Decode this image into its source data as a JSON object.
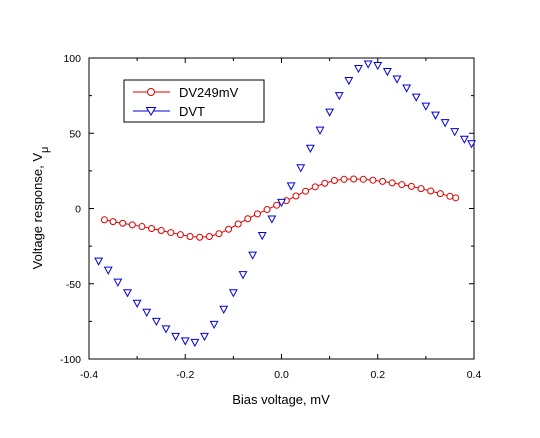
{
  "chart_data": {
    "type": "scatter",
    "xlabel": "Bias voltage, mV",
    "ylabel": "Voltage response, V",
    "ylabel_sub": "μ",
    "xlim": [
      -0.4,
      0.4
    ],
    "ylim": [
      -100,
      100
    ],
    "xticks": [
      "-0.4",
      "-0.2",
      "0.0",
      "0.2",
      "0.4"
    ],
    "yticks": [
      "-100",
      "-50",
      "0",
      "50",
      "100"
    ],
    "grid": false,
    "legend_position": "top-left",
    "series": [
      {
        "name": "DV249mV",
        "marker": "circle",
        "color": "#dd0000",
        "x": [
          -0.368,
          -0.35,
          -0.33,
          -0.31,
          -0.29,
          -0.27,
          -0.25,
          -0.23,
          -0.21,
          -0.19,
          -0.17,
          -0.15,
          -0.13,
          -0.11,
          -0.09,
          -0.07,
          -0.05,
          -0.03,
          -0.01,
          0.01,
          0.03,
          0.05,
          0.07,
          0.09,
          0.11,
          0.13,
          0.15,
          0.17,
          0.19,
          0.21,
          0.23,
          0.25,
          0.27,
          0.29,
          0.31,
          0.33,
          0.35,
          0.362
        ],
        "y": [
          -7.5,
          -8.7,
          -9.8,
          -10.9,
          -12,
          -13.3,
          -14.6,
          -16,
          -17.4,
          -18.6,
          -19.1,
          -18.6,
          -16.8,
          -13.8,
          -10.3,
          -6.8,
          -3.6,
          -0.7,
          2.2,
          5.2,
          8.3,
          11.5,
          14.4,
          16.8,
          18.6,
          19.4,
          19.6,
          19.4,
          18.8,
          18,
          17,
          15.9,
          14.7,
          13.2,
          11.6,
          9.9,
          8.1,
          7.1
        ]
      },
      {
        "name": "DVT",
        "marker": "triangle-down",
        "color": "#0000dd",
        "x": [
          -0.38,
          -0.36,
          -0.34,
          -0.32,
          -0.3,
          -0.28,
          -0.26,
          -0.24,
          -0.22,
          -0.2,
          -0.18,
          -0.16,
          -0.14,
          -0.12,
          -0.1,
          -0.08,
          -0.06,
          -0.04,
          -0.02,
          0.0,
          0.02,
          0.04,
          0.06,
          0.08,
          0.1,
          0.12,
          0.14,
          0.16,
          0.18,
          0.2,
          0.22,
          0.24,
          0.26,
          0.28,
          0.3,
          0.32,
          0.34,
          0.36,
          0.38,
          0.395
        ],
        "y": [
          -35,
          -41,
          -49,
          -56,
          -63,
          -69,
          -75,
          -80,
          -85,
          -88,
          -89,
          -85,
          -77,
          -67,
          -56,
          -44,
          -31,
          -18,
          -7,
          4,
          15,
          27,
          40,
          52,
          64,
          75,
          85,
          93,
          96,
          95,
          91,
          86,
          80,
          74,
          68,
          62,
          57,
          51,
          46,
          43
        ]
      }
    ]
  }
}
